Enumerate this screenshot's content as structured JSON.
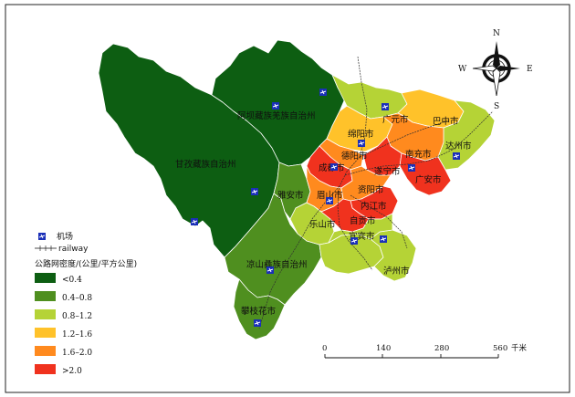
{
  "regions": {
    "aba": "阿坝藏族羌族自治州",
    "ganzi": "甘孜藏族自治州",
    "liangshan": "凉山彝族自治州",
    "panzhihua": "攀枝花市",
    "yaan": "雅安市",
    "chengdu": "成都市",
    "meishan": "眉山市",
    "leshan": "乐山市",
    "ziyang": "资阳市",
    "neijiang": "内江市",
    "zigong": "自贡市",
    "yibin": "宜宾市",
    "luzhou": "泸州市",
    "deyang": "德阳市",
    "mianyang": "绵阳市",
    "guangyuan": "广元市",
    "bazhong": "巴中市",
    "dazhou": "达州市",
    "nanchong": "南充市",
    "suining": "遂宁市",
    "guangan": "广安市"
  },
  "legend": {
    "airport_label": "机场",
    "railway_label": "railway",
    "density_title": "公路网密度/(公里/平方公里)",
    "classes": [
      {
        "label": "<0.4",
        "color": "#0d5e12"
      },
      {
        "label": "0.4–0.8",
        "color": "#4f8f1f"
      },
      {
        "label": "0.8–1.2",
        "color": "#b5d336"
      },
      {
        "label": "1.2–1.6",
        "color": "#ffc22a"
      },
      {
        "label": "1.6–2.0",
        "color": "#ff8a1e"
      },
      {
        "label": ">2.0",
        "color": "#f0321e"
      }
    ]
  },
  "scale_bar": {
    "ticks": [
      "0",
      "140",
      "280",
      "560"
    ],
    "unit": "千米"
  },
  "compass": {
    "n": "N",
    "s": "S",
    "e": "E",
    "w": "W"
  },
  "icons": {
    "airport": "airport-plane-icon",
    "compass": "north-arrow-compass-icon"
  }
}
